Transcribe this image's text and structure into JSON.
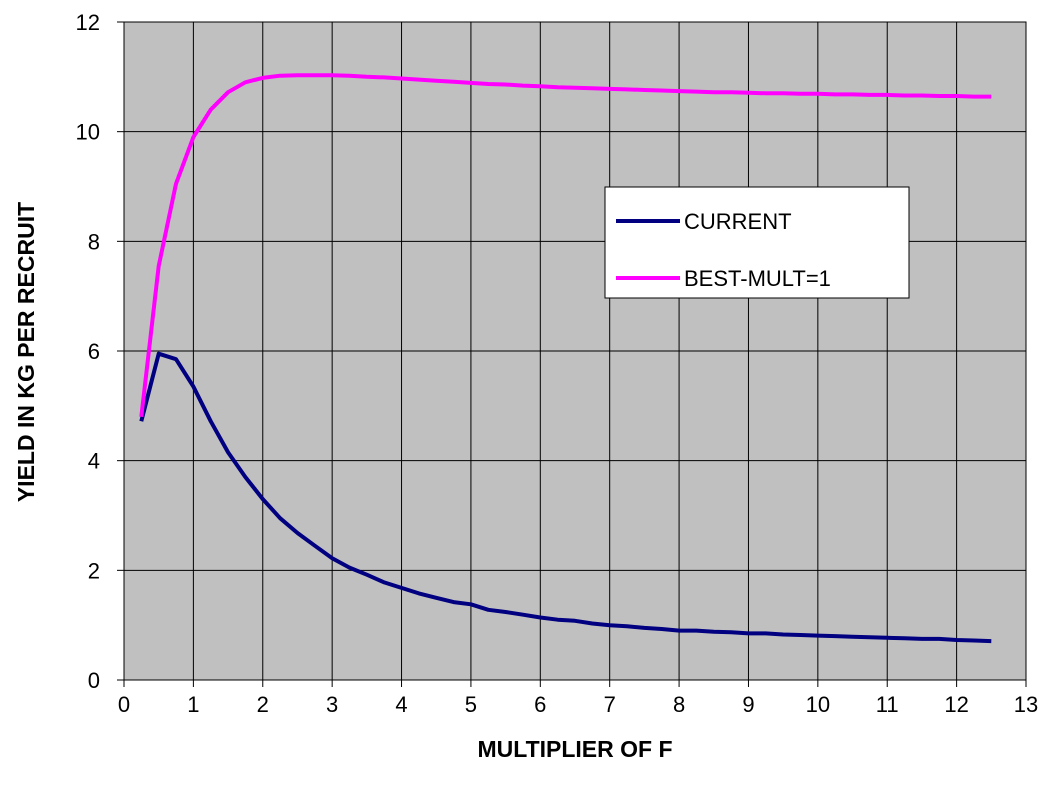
{
  "chart_data": {
    "type": "line",
    "title": "",
    "xlabel": "MULTIPLIER OF F",
    "ylabel": "YIELD IN KG PER RECRUIT",
    "xlim": [
      0,
      13
    ],
    "ylim": [
      0,
      12
    ],
    "x_ticks": [
      "0",
      "1",
      "2",
      "3",
      "4",
      "5",
      "6",
      "7",
      "8",
      "9",
      "10",
      "11",
      "12",
      "13"
    ],
    "y_ticks": [
      "0",
      "2",
      "4",
      "6",
      "8",
      "10",
      "12"
    ],
    "grid": true,
    "plot_background": "#c0c0c0",
    "legend_position": "center-right",
    "series": [
      {
        "name": "CURRENT",
        "color": "#000080",
        "x": [
          0.25,
          0.5,
          0.75,
          1.0,
          1.25,
          1.5,
          1.75,
          2.0,
          2.25,
          2.5,
          2.75,
          3.0,
          3.25,
          3.5,
          3.75,
          4.0,
          4.25,
          4.5,
          4.75,
          5.0,
          5.25,
          5.5,
          5.75,
          6.0,
          6.25,
          6.5,
          6.75,
          7.0,
          7.25,
          7.5,
          7.75,
          8.0,
          8.25,
          8.5,
          8.75,
          9.0,
          9.25,
          9.5,
          9.75,
          10.0,
          10.25,
          10.5,
          10.75,
          11.0,
          11.25,
          11.5,
          11.75,
          12.0,
          12.25,
          12.5
        ],
        "values": [
          4.72,
          5.95,
          5.85,
          5.35,
          4.72,
          4.15,
          3.7,
          3.3,
          2.95,
          2.68,
          2.45,
          2.22,
          2.05,
          1.92,
          1.78,
          1.68,
          1.58,
          1.5,
          1.42,
          1.38,
          1.28,
          1.24,
          1.19,
          1.14,
          1.1,
          1.08,
          1.03,
          1.0,
          0.98,
          0.95,
          0.93,
          0.9,
          0.9,
          0.88,
          0.87,
          0.85,
          0.85,
          0.83,
          0.82,
          0.81,
          0.8,
          0.79,
          0.78,
          0.77,
          0.76,
          0.75,
          0.75,
          0.73,
          0.72,
          0.71
        ]
      },
      {
        "name": "BEST-MULT=1",
        "color": "#ff00ff",
        "x": [
          0.25,
          0.5,
          0.75,
          1.0,
          1.25,
          1.5,
          1.75,
          2.0,
          2.25,
          2.5,
          2.75,
          3.0,
          3.25,
          3.5,
          3.75,
          4.0,
          4.25,
          4.5,
          4.75,
          5.0,
          5.25,
          5.5,
          5.75,
          6.0,
          6.25,
          6.5,
          6.75,
          7.0,
          7.25,
          7.5,
          7.75,
          8.0,
          8.25,
          8.5,
          8.75,
          9.0,
          9.25,
          9.5,
          9.75,
          10.0,
          10.25,
          10.5,
          10.75,
          11.0,
          11.25,
          11.5,
          11.75,
          12.0,
          12.25,
          12.5
        ],
        "values": [
          4.8,
          7.55,
          9.05,
          9.9,
          10.4,
          10.72,
          10.9,
          10.98,
          11.02,
          11.03,
          11.03,
          11.03,
          11.02,
          11.0,
          10.99,
          10.97,
          10.95,
          10.93,
          10.91,
          10.89,
          10.87,
          10.86,
          10.84,
          10.83,
          10.81,
          10.8,
          10.79,
          10.78,
          10.77,
          10.76,
          10.75,
          10.74,
          10.73,
          10.72,
          10.72,
          10.71,
          10.7,
          10.7,
          10.69,
          10.69,
          10.68,
          10.68,
          10.67,
          10.67,
          10.66,
          10.66,
          10.65,
          10.65,
          10.64,
          10.64
        ]
      }
    ]
  }
}
